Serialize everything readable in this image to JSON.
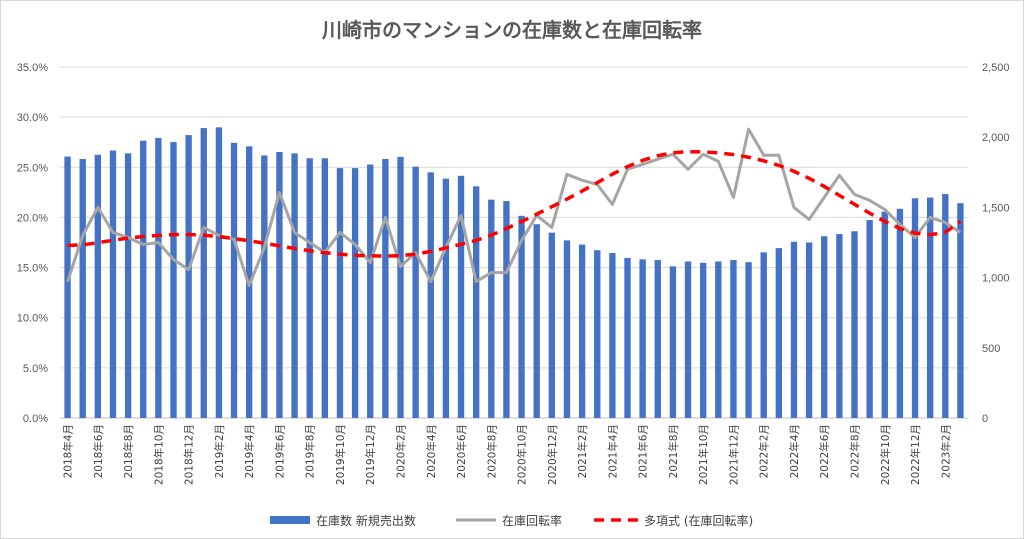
{
  "chart_data": {
    "type": "bar+line",
    "title": "川崎市のマンションの在庫数と在庫回転率",
    "categories": [
      "2018年4月",
      "2018年5月",
      "2018年6月",
      "2018年7月",
      "2018年8月",
      "2018年9月",
      "2018年10月",
      "2018年11月",
      "2018年12月",
      "2019年1月",
      "2019年2月",
      "2019年3月",
      "2019年4月",
      "2019年5月",
      "2019年6月",
      "2019年7月",
      "2019年8月",
      "2019年9月",
      "2019年10月",
      "2019年11月",
      "2019年12月",
      "2020年1月",
      "2020年2月",
      "2020年3月",
      "2020年4月",
      "2020年5月",
      "2020年6月",
      "2020年7月",
      "2020年8月",
      "2020年9月",
      "2020年10月",
      "2020年11月",
      "2020年12月",
      "2021年1月",
      "2021年2月",
      "2021年3月",
      "2021年4月",
      "2021年5月",
      "2021年6月",
      "2021年7月",
      "2021年8月",
      "2021年9月",
      "2021年10月",
      "2021年11月",
      "2021年12月",
      "2022年1月",
      "2022年2月",
      "2022年3月",
      "2022年4月",
      "2022年5月",
      "2022年6月",
      "2022年7月",
      "2022年8月",
      "2022年9月",
      "2022年10月",
      "2022年11月",
      "2022年12月",
      "2023年1月",
      "2023年2月",
      "2023年3月"
    ],
    "x_tick_labels": [
      "2018年4月",
      "2018年6月",
      "2018年8月",
      "2018年10月",
      "2018年12月",
      "2019年2月",
      "2019年4月",
      "2019年6月",
      "2019年8月",
      "2019年10月",
      "2019年12月",
      "2020年2月",
      "2020年4月",
      "2020年6月",
      "2020年8月",
      "2020年10月",
      "2020年12月",
      "2021年2月",
      "2021年4月",
      "2021年6月",
      "2021年8月",
      "2021年10月",
      "2021年12月",
      "2022年2月",
      "2022年4月",
      "2022年6月",
      "2022年8月",
      "2022年10月",
      "2022年12月",
      "2023年2月"
    ],
    "y_left": {
      "ticks": [
        "0.0%",
        "5.0%",
        "10.0%",
        "15.0%",
        "20.0%",
        "25.0%",
        "30.0%",
        "35.0%"
      ],
      "ylim": [
        0,
        35
      ]
    },
    "y_right": {
      "ticks": [
        "0",
        "500",
        "1,000",
        "1,500",
        "2,000",
        "2,500"
      ],
      "ylim": [
        0,
        2500
      ]
    },
    "grid": true,
    "legend_position": "bottom",
    "series": [
      {
        "name": "在庫数 新規売出数",
        "type": "bar",
        "axis": "right",
        "color": "#4472c4",
        "values": [
          1862,
          1845,
          1875,
          1905,
          1885,
          1975,
          1995,
          1965,
          2015,
          2065,
          2070,
          1960,
          1935,
          1870,
          1895,
          1885,
          1850,
          1850,
          1780,
          1780,
          1805,
          1845,
          1860,
          1790,
          1750,
          1705,
          1725,
          1650,
          1555,
          1545,
          1440,
          1380,
          1320,
          1265,
          1235,
          1195,
          1175,
          1140,
          1130,
          1125,
          1080,
          1115,
          1105,
          1115,
          1125,
          1110,
          1180,
          1210,
          1255,
          1250,
          1295,
          1310,
          1330,
          1410,
          1470,
          1490,
          1565,
          1570,
          1595,
          1530
        ]
      },
      {
        "name": "在庫回転率",
        "type": "line",
        "axis": "left",
        "color": "#a5a5a5",
        "values": [
          13.6,
          18.2,
          21.0,
          18.5,
          18.0,
          17.3,
          17.5,
          15.8,
          14.8,
          19.0,
          18.2,
          17.8,
          13.2,
          17.0,
          22.5,
          18.5,
          17.5,
          16.5,
          18.5,
          17.3,
          15.5,
          20.0,
          15.1,
          16.5,
          13.6,
          17.0,
          20.2,
          13.6,
          14.5,
          14.5,
          17.7,
          20.2,
          19.0,
          24.3,
          23.7,
          23.3,
          21.3,
          24.8,
          25.3,
          25.8,
          26.3,
          24.8,
          26.3,
          25.6,
          22.0,
          28.8,
          26.2,
          26.2,
          21.0,
          19.8,
          22.0,
          24.2,
          22.3,
          21.7,
          20.8,
          19.3,
          18.0,
          20.0,
          19.5,
          18.5
        ]
      },
      {
        "name": "多項式 (在庫回転率)",
        "type": "trendline",
        "axis": "left",
        "color": "#ff0000",
        "values": [
          17.2,
          17.27,
          17.48,
          17.72,
          17.94,
          18.1,
          18.21,
          18.29,
          18.3,
          18.23,
          18.08,
          17.89,
          17.67,
          17.43,
          17.16,
          16.9,
          16.68,
          16.48,
          16.33,
          16.22,
          16.17,
          16.15,
          16.19,
          16.33,
          16.61,
          16.96,
          17.32,
          17.71,
          18.23,
          18.88,
          19.59,
          20.33,
          21.07,
          21.83,
          22.63,
          23.47,
          24.31,
          25.07,
          25.69,
          26.16,
          26.45,
          26.55,
          26.53,
          26.44,
          26.27,
          26.0,
          25.65,
          25.19,
          24.6,
          23.9,
          23.09,
          22.2,
          21.31,
          20.43,
          19.6,
          18.9,
          18.43,
          18.27,
          18.51,
          19.6
        ]
      }
    ]
  }
}
